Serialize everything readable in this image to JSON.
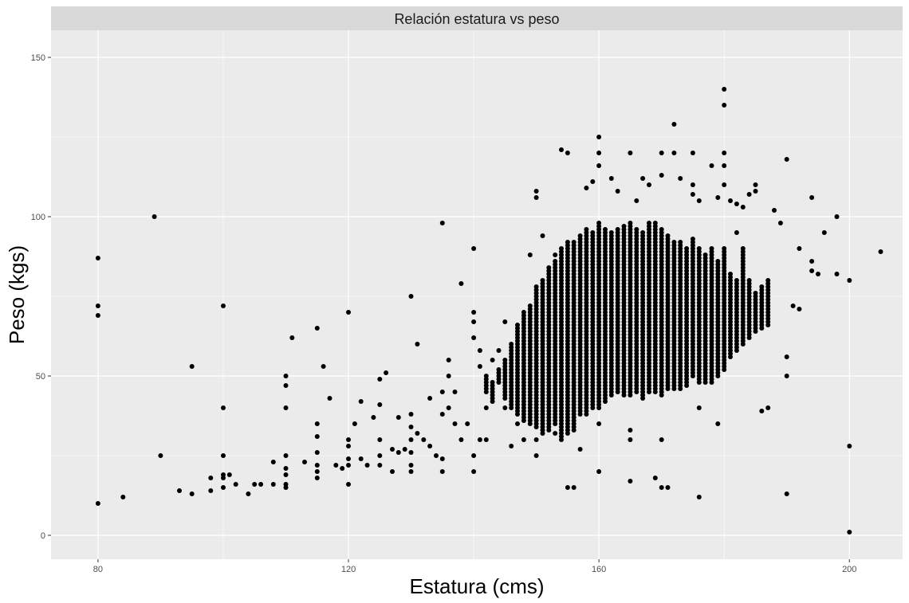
{
  "chart_data": {
    "type": "scatter",
    "facet_title": "Relación estatura vs peso",
    "xlabel": "Estatura (cms)",
    "ylabel": "Peso (kgs)",
    "xlim": [
      72.5,
      208.5
    ],
    "ylim": [
      -7.5,
      158.5
    ],
    "x_ticks": [
      80,
      120,
      160,
      200
    ],
    "y_ticks": [
      0,
      50,
      100,
      150
    ],
    "x_minor": [
      100,
      140,
      180
    ],
    "y_minor": [
      25,
      75,
      125
    ],
    "grid": true,
    "colors": {
      "panel": "#ebebeb",
      "strip": "#d9d9d9",
      "grid": "#ffffff",
      "point": "#000000"
    },
    "outliers": [
      [
        80,
        87
      ],
      [
        80,
        72
      ],
      [
        80,
        69
      ],
      [
        80,
        10
      ],
      [
        84,
        12
      ],
      [
        89,
        100
      ],
      [
        90,
        25
      ],
      [
        93,
        14
      ],
      [
        95,
        13
      ],
      [
        95,
        53
      ],
      [
        98,
        18
      ],
      [
        98,
        14
      ],
      [
        100,
        72
      ],
      [
        100,
        40
      ],
      [
        100,
        25
      ],
      [
        100,
        19
      ],
      [
        100,
        18
      ],
      [
        100,
        15
      ],
      [
        101,
        19
      ],
      [
        102,
        16
      ],
      [
        104,
        13
      ],
      [
        105,
        16
      ],
      [
        106,
        16
      ],
      [
        108,
        16
      ],
      [
        108,
        23
      ],
      [
        110,
        50
      ],
      [
        110,
        47
      ],
      [
        110,
        40
      ],
      [
        110,
        25
      ],
      [
        110,
        21
      ],
      [
        110,
        19
      ],
      [
        110,
        16
      ],
      [
        110,
        15
      ],
      [
        111,
        62
      ],
      [
        113,
        23
      ],
      [
        115,
        65
      ],
      [
        115,
        35
      ],
      [
        115,
        31
      ],
      [
        115,
        26
      ],
      [
        115,
        22
      ],
      [
        115,
        20
      ],
      [
        115,
        18
      ],
      [
        116,
        53
      ],
      [
        117,
        43
      ],
      [
        118,
        22
      ],
      [
        119,
        21
      ],
      [
        120,
        70
      ],
      [
        120,
        30
      ],
      [
        120,
        28
      ],
      [
        120,
        24
      ],
      [
        120,
        22
      ],
      [
        120,
        16
      ],
      [
        121,
        35
      ],
      [
        122,
        42
      ],
      [
        122,
        24
      ],
      [
        123,
        22
      ],
      [
        124,
        37
      ],
      [
        125,
        49
      ],
      [
        125,
        41
      ],
      [
        125,
        30
      ],
      [
        125,
        25
      ],
      [
        125,
        22
      ],
      [
        126,
        51
      ],
      [
        127,
        27
      ],
      [
        127,
        20
      ],
      [
        128,
        26
      ],
      [
        128,
        37
      ],
      [
        129,
        27
      ],
      [
        130,
        75
      ],
      [
        130,
        38
      ],
      [
        130,
        34
      ],
      [
        130,
        30
      ],
      [
        130,
        26
      ],
      [
        130,
        22
      ],
      [
        130,
        20
      ],
      [
        131,
        60
      ],
      [
        131,
        32
      ],
      [
        132,
        30
      ],
      [
        133,
        43
      ],
      [
        133,
        28
      ],
      [
        134,
        25
      ],
      [
        135,
        98
      ],
      [
        135,
        38
      ],
      [
        135,
        45
      ],
      [
        135,
        24
      ],
      [
        135,
        20
      ],
      [
        136,
        55
      ],
      [
        136,
        40
      ],
      [
        136,
        50
      ],
      [
        137,
        35
      ],
      [
        137,
        45
      ],
      [
        138,
        79
      ],
      [
        138,
        30
      ],
      [
        139,
        35
      ],
      [
        140,
        90
      ],
      [
        140,
        70
      ],
      [
        140,
        67
      ],
      [
        140,
        62
      ],
      [
        140,
        20
      ],
      [
        140,
        25
      ],
      [
        141,
        58
      ],
      [
        141,
        53
      ],
      [
        141,
        30
      ],
      [
        142,
        40
      ],
      [
        142,
        30
      ],
      [
        143,
        55
      ],
      [
        144,
        58
      ],
      [
        145,
        40
      ],
      [
        145,
        67
      ],
      [
        146,
        28
      ],
      [
        147,
        35
      ],
      [
        148,
        30
      ],
      [
        149,
        88
      ],
      [
        150,
        108
      ],
      [
        150,
        106
      ],
      [
        150,
        25
      ],
      [
        150,
        30
      ],
      [
        151,
        94
      ],
      [
        152,
        76
      ],
      [
        153,
        32
      ],
      [
        153,
        88
      ],
      [
        154,
        121
      ],
      [
        155,
        120
      ],
      [
        155,
        15
      ],
      [
        156,
        15
      ],
      [
        157,
        27
      ],
      [
        158,
        109
      ],
      [
        159,
        111
      ],
      [
        160,
        125
      ],
      [
        160,
        120
      ],
      [
        160,
        116
      ],
      [
        160,
        20
      ],
      [
        160,
        35
      ],
      [
        162,
        112
      ],
      [
        163,
        108
      ],
      [
        165,
        120
      ],
      [
        165,
        17
      ],
      [
        165,
        33
      ],
      [
        165,
        30
      ],
      [
        166,
        105
      ],
      [
        167,
        112
      ],
      [
        168,
        110
      ],
      [
        169,
        18
      ],
      [
        170,
        120
      ],
      [
        170,
        113
      ],
      [
        170,
        30
      ],
      [
        170,
        15
      ],
      [
        171,
        15
      ],
      [
        172,
        129
      ],
      [
        172,
        120
      ],
      [
        173,
        112
      ],
      [
        175,
        120
      ],
      [
        175,
        110
      ],
      [
        175,
        107
      ],
      [
        176,
        105
      ],
      [
        176,
        40
      ],
      [
        176,
        12
      ],
      [
        178,
        116
      ],
      [
        179,
        106
      ],
      [
        179,
        35
      ],
      [
        180,
        140
      ],
      [
        180,
        135
      ],
      [
        180,
        120
      ],
      [
        180,
        116
      ],
      [
        180,
        110
      ],
      [
        181,
        105
      ],
      [
        182,
        104
      ],
      [
        182,
        95
      ],
      [
        183,
        103
      ],
      [
        184,
        107
      ],
      [
        185,
        110
      ],
      [
        185,
        108
      ],
      [
        186,
        39
      ],
      [
        187,
        40
      ],
      [
        188,
        102
      ],
      [
        189,
        98
      ],
      [
        190,
        118
      ],
      [
        190,
        56
      ],
      [
        190,
        50
      ],
      [
        190,
        13
      ],
      [
        191,
        72
      ],
      [
        192,
        71
      ],
      [
        192,
        90
      ],
      [
        194,
        106
      ],
      [
        194,
        86
      ],
      [
        194,
        83
      ],
      [
        195,
        82
      ],
      [
        196,
        95
      ],
      [
        198,
        100
      ],
      [
        198,
        82
      ],
      [
        200,
        80
      ],
      [
        200,
        28
      ],
      [
        200,
        1
      ],
      [
        205,
        89
      ]
    ],
    "columns": [
      [
        142,
        45,
        50
      ],
      [
        143,
        42,
        48
      ],
      [
        144,
        48,
        52
      ],
      [
        145,
        43,
        55
      ],
      [
        146,
        40,
        60
      ],
      [
        147,
        38,
        66
      ],
      [
        148,
        36,
        70
      ],
      [
        149,
        35,
        72
      ],
      [
        150,
        34,
        78
      ],
      [
        151,
        32,
        80
      ],
      [
        152,
        33,
        84
      ],
      [
        153,
        35,
        86
      ],
      [
        154,
        30,
        90
      ],
      [
        155,
        32,
        92
      ],
      [
        156,
        33,
        92
      ],
      [
        157,
        38,
        94
      ],
      [
        158,
        38,
        96
      ],
      [
        159,
        40,
        95
      ],
      [
        160,
        40,
        98
      ],
      [
        161,
        42,
        96
      ],
      [
        162,
        44,
        95
      ],
      [
        163,
        45,
        96
      ],
      [
        164,
        44,
        97
      ],
      [
        165,
        44,
        98
      ],
      [
        166,
        45,
        96
      ],
      [
        167,
        43,
        95
      ],
      [
        168,
        45,
        98
      ],
      [
        169,
        45,
        98
      ],
      [
        170,
        44,
        96
      ],
      [
        171,
        46,
        94
      ],
      [
        172,
        46,
        92
      ],
      [
        173,
        46,
        92
      ],
      [
        174,
        47,
        90
      ],
      [
        175,
        50,
        93
      ],
      [
        176,
        48,
        90
      ],
      [
        177,
        48,
        88
      ],
      [
        178,
        48,
        90
      ],
      [
        179,
        50,
        86
      ],
      [
        180,
        52,
        90
      ],
      [
        181,
        56,
        82
      ],
      [
        182,
        58,
        80
      ],
      [
        183,
        60,
        90
      ],
      [
        184,
        62,
        80
      ],
      [
        185,
        64,
        76
      ],
      [
        186,
        65,
        78
      ],
      [
        187,
        66,
        80
      ]
    ]
  }
}
